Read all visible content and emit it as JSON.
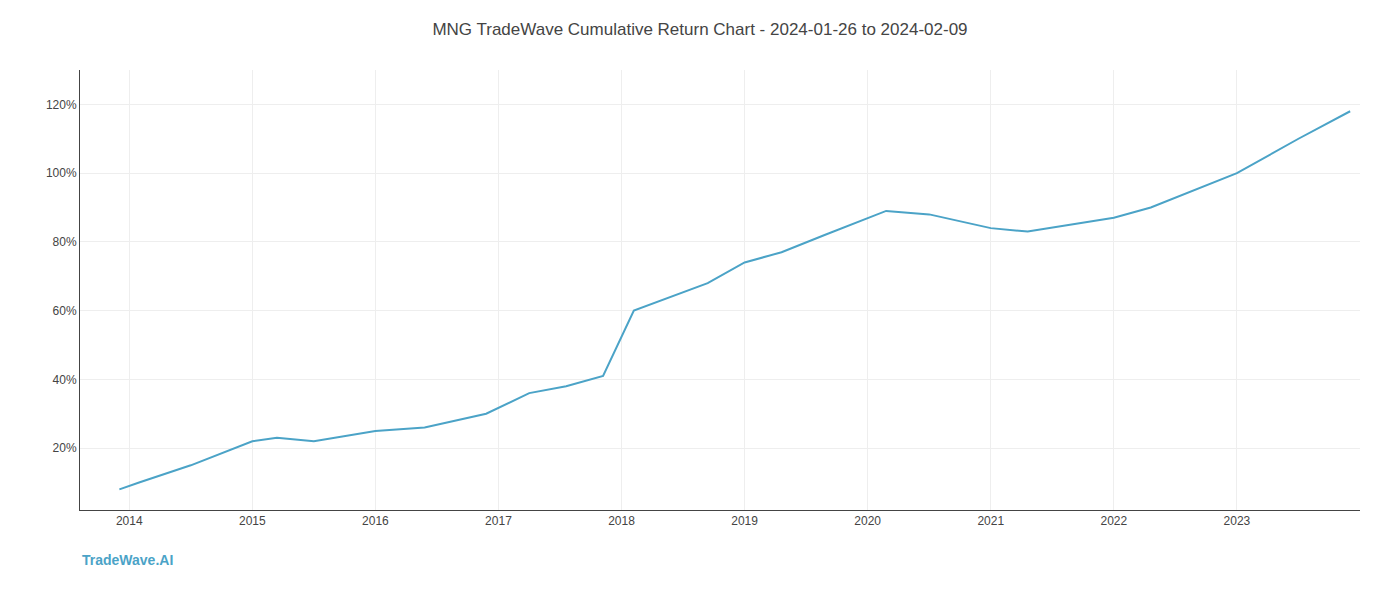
{
  "chart_data": {
    "type": "line",
    "title": "MNG TradeWave Cumulative Return Chart - 2024-01-26 to 2024-02-09",
    "annotations": [
      "TradeWave.AI"
    ],
    "x": [
      2013.92,
      2014.08,
      2014.5,
      2015.0,
      2015.2,
      2015.5,
      2016.0,
      2016.4,
      2016.9,
      2017.25,
      2017.55,
      2017.85,
      2018.1,
      2018.4,
      2018.7,
      2019.0,
      2019.3,
      2019.65,
      2020.0,
      2020.15,
      2020.5,
      2021.0,
      2021.3,
      2021.65,
      2022.0,
      2022.3,
      2022.65,
      2023.0,
      2023.5,
      2023.92
    ],
    "values": [
      0.08,
      0.1,
      0.15,
      0.22,
      0.23,
      0.22,
      0.25,
      0.26,
      0.3,
      0.36,
      0.38,
      0.41,
      0.6,
      0.64,
      0.68,
      0.74,
      0.77,
      0.82,
      0.87,
      0.89,
      0.88,
      0.84,
      0.83,
      0.85,
      0.87,
      0.9,
      0.95,
      1.0,
      1.1,
      1.18
    ],
    "color": "#4ba3c7",
    "xlim": [
      2013.6,
      2024.0
    ],
    "xticks": [
      2014,
      2015,
      2016,
      2017,
      2018,
      2019,
      2020,
      2021,
      2022,
      2023
    ],
    "ylim": [
      0.02,
      1.3
    ],
    "yticks": [
      {
        "value": 0.2,
        "label": "20%"
      },
      {
        "value": 0.4,
        "label": "40%"
      },
      {
        "value": 0.6,
        "label": "60%"
      },
      {
        "value": 0.8,
        "label": "80%"
      },
      {
        "value": 1.0,
        "label": "100%"
      },
      {
        "value": 1.2,
        "label": "120%"
      }
    ],
    "grid": true
  }
}
